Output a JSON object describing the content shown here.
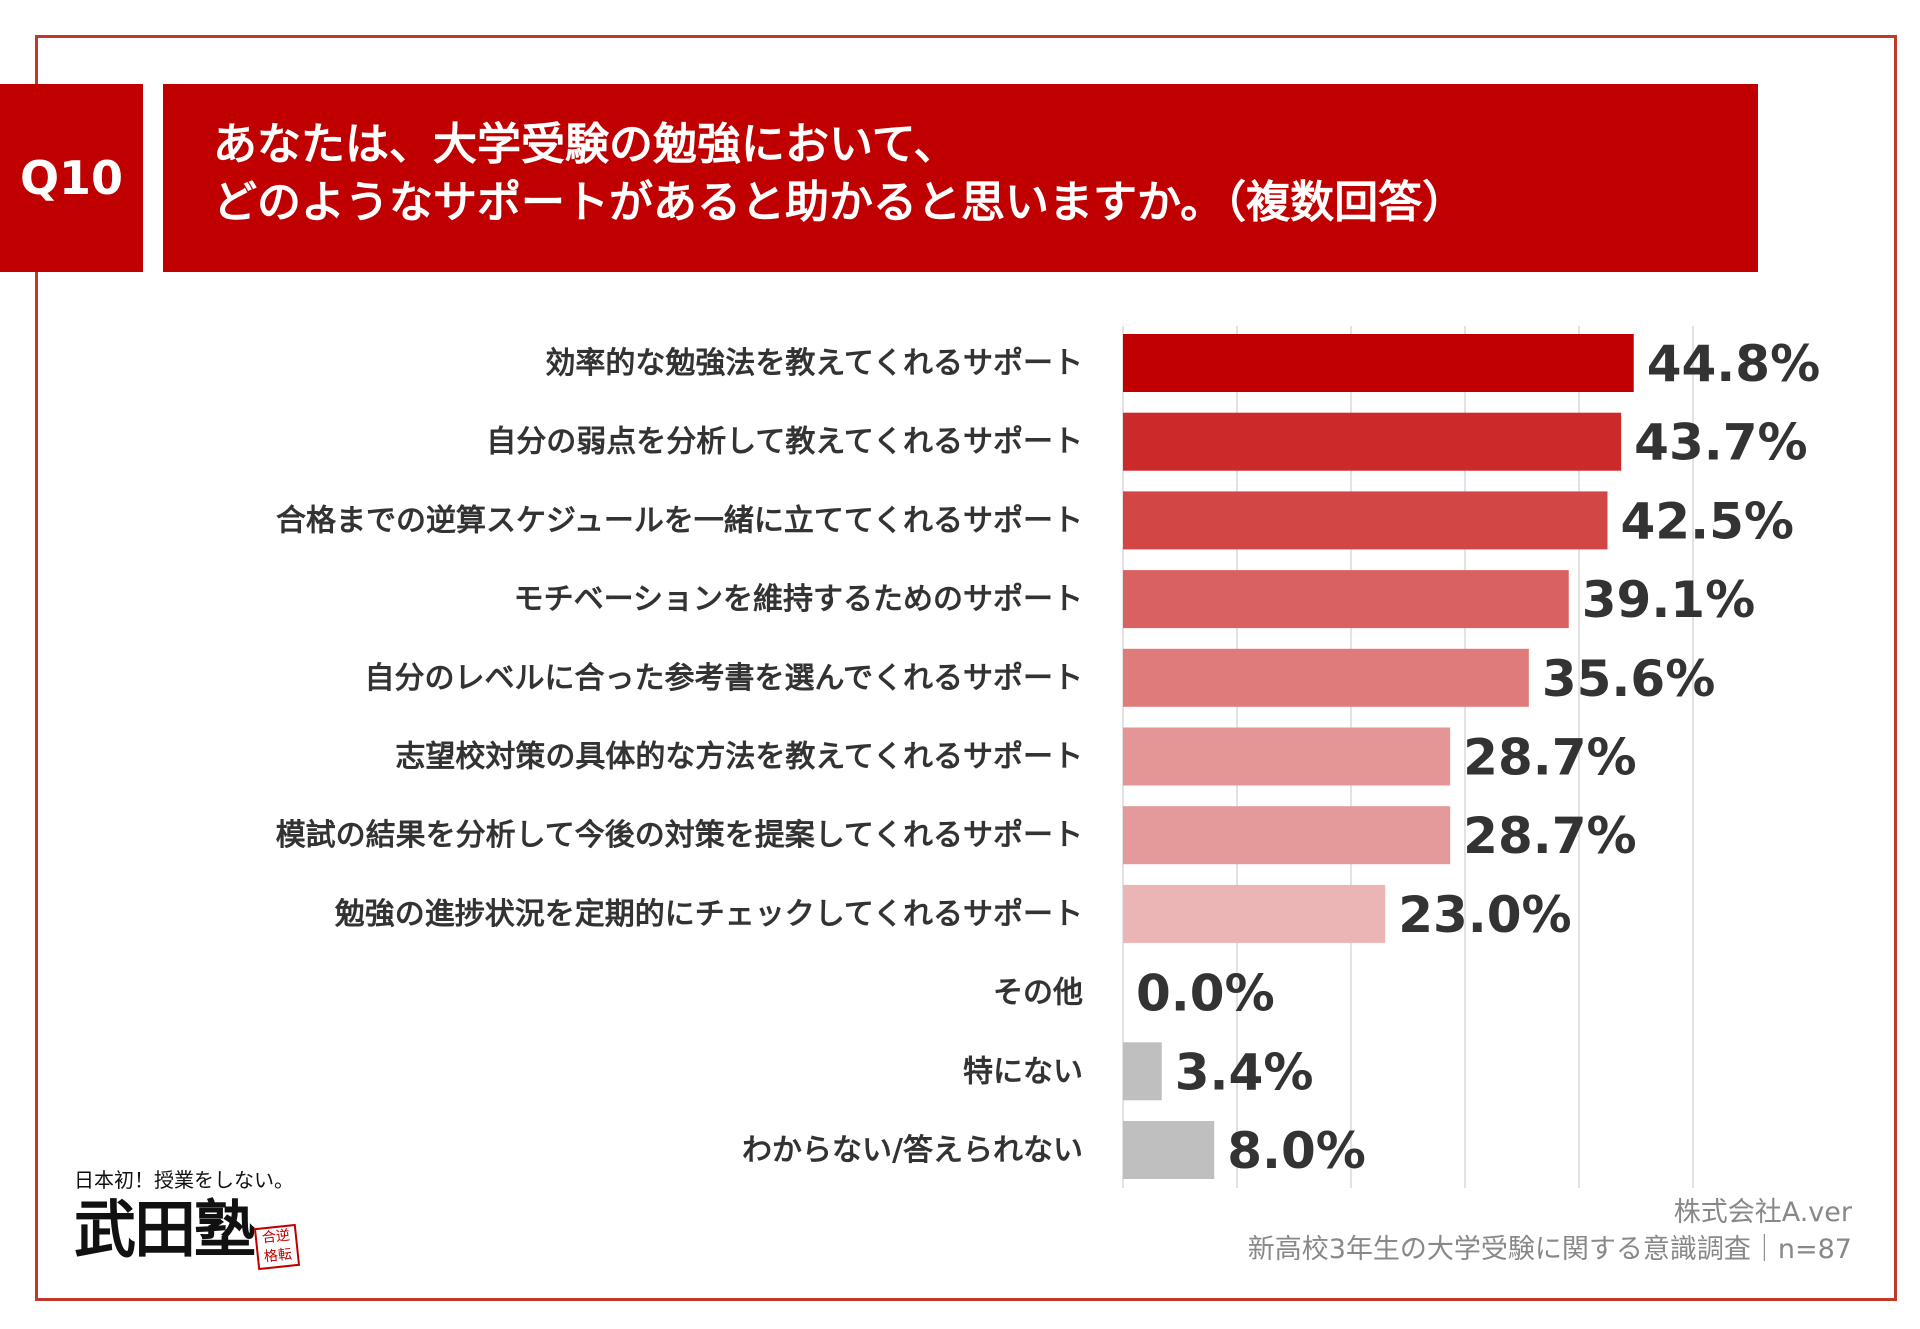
{
  "question": {
    "number": "Q10",
    "line1": "あなたは、大学受験の勉強において、",
    "line2": "どのようなサポートがあると助かると思いますか。（複数回答）"
  },
  "chart_data": {
    "type": "bar",
    "orientation": "horizontal",
    "title": "あなたは、大学受験の勉強において、どのようなサポートがあると助かると思いますか。（複数回答）",
    "categories": [
      "効率的な勉強法を教えてくれるサポート",
      "自分の弱点を分析して教えてくれるサポート",
      "合格までの逆算スケジュールを一緒に立ててくれるサポート",
      "モチベーションを維持するためのサポート",
      "自分のレベルに合った参考書を選んでくれるサポート",
      "志望校対策の具体的な方法を教えてくれるサポート",
      "模試の結果を分析して今後の対策を提案してくれるサポート",
      "勉強の進捗状況を定期的にチェックしてくれるサポート",
      "その他",
      "特にない",
      "わからない/答えられない"
    ],
    "values": [
      44.8,
      43.7,
      42.5,
      39.1,
      35.6,
      28.7,
      28.7,
      23.0,
      0.0,
      3.4,
      8.0
    ],
    "value_labels": [
      "44.8%",
      "43.7%",
      "42.5%",
      "39.1%",
      "35.6%",
      "28.7%",
      "28.7%",
      "23.0%",
      "0.0%",
      "3.4%",
      "8.0%"
    ],
    "colors": [
      "#c00000",
      "#cc2a2a",
      "#d34646",
      "#da6161",
      "#df7b7b",
      "#e49696",
      "#e49a9a",
      "#ecb5b5",
      "#bfbfbf",
      "#bfbfbf",
      "#bfbfbf"
    ],
    "xlim": [
      0,
      50
    ],
    "grid": true,
    "legend": "none"
  },
  "source": {
    "company": "株式会社A.ver",
    "survey": "新高校3年生の大学受験に関する意識調査｜n=87"
  },
  "logo": {
    "tagline": "日本初！授業をしない。",
    "name": "武田塾",
    "stamp": "合逆格転"
  }
}
